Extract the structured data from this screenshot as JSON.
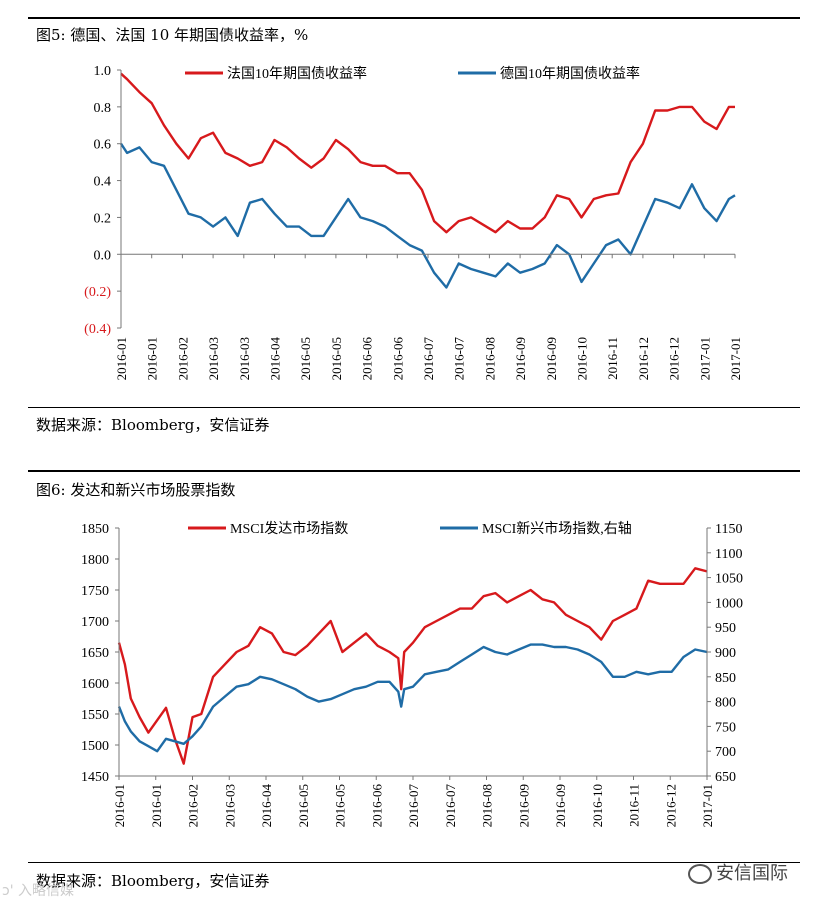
{
  "chart_data": [
    {
      "type": "line",
      "figure_label": "图5:",
      "title": "德国、法国 10 年期国债收益率，%",
      "ylim": [
        -0.4,
        1.0
      ],
      "yticks": [
        -0.4,
        -0.2,
        0.0,
        0.2,
        0.4,
        0.6,
        0.8,
        1.0
      ],
      "ytick_labels": [
        "(0.4)",
        "(0.2)",
        "0.0",
        "0.2",
        "0.4",
        "0.6",
        "0.8",
        "1.0"
      ],
      "xtick_labels": [
        "2016-01",
        "2016-01",
        "2016-02",
        "2016-03",
        "2016-03",
        "2016-04",
        "2016-05",
        "2016-05",
        "2016-06",
        "2016-06",
        "2016-07",
        "2016-07",
        "2016-08",
        "2016-09",
        "2016-09",
        "2016-10",
        "2016-11",
        "2016-12",
        "2016-12",
        "2017-01",
        "2017-01"
      ],
      "legend": "top",
      "series": [
        {
          "name": "法国10年期国债收益率",
          "color": "#d7191c",
          "x": [
            0,
            0.01,
            0.03,
            0.05,
            0.07,
            0.09,
            0.11,
            0.13,
            0.15,
            0.17,
            0.19,
            0.21,
            0.23,
            0.25,
            0.27,
            0.29,
            0.31,
            0.33,
            0.35,
            0.37,
            0.39,
            0.41,
            0.43,
            0.45,
            0.47,
            0.49,
            0.51,
            0.53,
            0.55,
            0.57,
            0.59,
            0.61,
            0.63,
            0.65,
            0.67,
            0.69,
            0.71,
            0.73,
            0.75,
            0.77,
            0.79,
            0.81,
            0.83,
            0.85,
            0.87,
            0.89,
            0.91,
            0.93,
            0.95,
            0.97,
            0.99,
            1.0
          ],
          "values": [
            0.98,
            0.95,
            0.88,
            0.82,
            0.7,
            0.6,
            0.52,
            0.63,
            0.66,
            0.55,
            0.52,
            0.48,
            0.5,
            0.62,
            0.58,
            0.52,
            0.47,
            0.52,
            0.62,
            0.57,
            0.5,
            0.48,
            0.48,
            0.44,
            0.44,
            0.35,
            0.18,
            0.12,
            0.18,
            0.2,
            0.16,
            0.12,
            0.18,
            0.14,
            0.14,
            0.2,
            0.32,
            0.3,
            0.2,
            0.3,
            0.32,
            0.33,
            0.5,
            0.6,
            0.78,
            0.78,
            0.8,
            0.8,
            0.72,
            0.68,
            0.8,
            0.8
          ]
        },
        {
          "name": "德国10年期国债收益率",
          "color": "#1f6ca6",
          "x": [
            0,
            0.01,
            0.03,
            0.05,
            0.07,
            0.09,
            0.11,
            0.13,
            0.15,
            0.17,
            0.19,
            0.21,
            0.23,
            0.25,
            0.27,
            0.29,
            0.31,
            0.33,
            0.35,
            0.37,
            0.39,
            0.41,
            0.43,
            0.45,
            0.47,
            0.49,
            0.51,
            0.53,
            0.55,
            0.57,
            0.59,
            0.61,
            0.63,
            0.65,
            0.67,
            0.69,
            0.71,
            0.73,
            0.75,
            0.77,
            0.79,
            0.81,
            0.83,
            0.85,
            0.87,
            0.89,
            0.91,
            0.93,
            0.95,
            0.97,
            0.99,
            1.0
          ],
          "values": [
            0.6,
            0.55,
            0.58,
            0.5,
            0.48,
            0.35,
            0.22,
            0.2,
            0.15,
            0.2,
            0.1,
            0.28,
            0.3,
            0.22,
            0.15,
            0.15,
            0.1,
            0.1,
            0.2,
            0.3,
            0.2,
            0.18,
            0.15,
            0.1,
            0.05,
            0.02,
            -0.1,
            -0.18,
            -0.05,
            -0.08,
            -0.1,
            -0.12,
            -0.05,
            -0.1,
            -0.08,
            -0.05,
            0.05,
            0.0,
            -0.15,
            -0.05,
            0.05,
            0.08,
            0.0,
            0.15,
            0.3,
            0.28,
            0.25,
            0.38,
            0.25,
            0.18,
            0.3,
            0.32
          ]
        }
      ]
    },
    {
      "type": "line",
      "figure_label": "图6:",
      "title": "发达和新兴市场股票指数",
      "ylim": [
        1450,
        1850
      ],
      "yticks": [
        1450,
        1500,
        1550,
        1600,
        1650,
        1700,
        1750,
        1800,
        1850
      ],
      "y2lim": [
        650,
        1150
      ],
      "y2ticks": [
        650,
        700,
        750,
        800,
        850,
        900,
        950,
        1000,
        1050,
        1100,
        1150
      ],
      "xtick_labels": [
        "2016-01",
        "2016-01",
        "2016-02",
        "2016-03",
        "2016-04",
        "2016-05",
        "2016-05",
        "2016-06",
        "2016-07",
        "2016-07",
        "2016-08",
        "2016-09",
        "2016-09",
        "2016-10",
        "2016-11",
        "2016-12",
        "2017-01"
      ],
      "legend": "top",
      "series": [
        {
          "name": "MSCI发达市场指数",
          "axis": "left",
          "color": "#d7191c",
          "x": [
            0,
            0.01,
            0.02,
            0.035,
            0.05,
            0.065,
            0.08,
            0.095,
            0.11,
            0.125,
            0.14,
            0.16,
            0.18,
            0.2,
            0.22,
            0.24,
            0.26,
            0.28,
            0.3,
            0.32,
            0.34,
            0.36,
            0.38,
            0.4,
            0.42,
            0.44,
            0.46,
            0.475,
            0.48,
            0.485,
            0.5,
            0.52,
            0.54,
            0.56,
            0.58,
            0.6,
            0.62,
            0.64,
            0.66,
            0.68,
            0.7,
            0.72,
            0.74,
            0.76,
            0.78,
            0.8,
            0.82,
            0.84,
            0.86,
            0.88,
            0.9,
            0.92,
            0.94,
            0.96,
            0.98,
            1.0
          ],
          "values": [
            1665,
            1630,
            1575,
            1545,
            1520,
            1540,
            1560,
            1510,
            1470,
            1545,
            1550,
            1610,
            1630,
            1650,
            1660,
            1690,
            1680,
            1650,
            1645,
            1660,
            1680,
            1700,
            1650,
            1665,
            1680,
            1660,
            1650,
            1640,
            1590,
            1650,
            1665,
            1690,
            1700,
            1710,
            1720,
            1720,
            1740,
            1745,
            1730,
            1740,
            1750,
            1735,
            1730,
            1710,
            1700,
            1690,
            1670,
            1700,
            1710,
            1720,
            1765,
            1760,
            1760,
            1760,
            1785,
            1780
          ]
        },
        {
          "name": "MSCI新兴市场指数,右轴",
          "axis": "right",
          "color": "#1f6ca6",
          "x": [
            0,
            0.01,
            0.02,
            0.035,
            0.05,
            0.065,
            0.08,
            0.095,
            0.11,
            0.125,
            0.14,
            0.16,
            0.18,
            0.2,
            0.22,
            0.24,
            0.26,
            0.28,
            0.3,
            0.32,
            0.34,
            0.36,
            0.38,
            0.4,
            0.42,
            0.44,
            0.46,
            0.475,
            0.48,
            0.485,
            0.5,
            0.52,
            0.54,
            0.56,
            0.58,
            0.6,
            0.62,
            0.64,
            0.66,
            0.68,
            0.7,
            0.72,
            0.74,
            0.76,
            0.78,
            0.8,
            0.82,
            0.84,
            0.86,
            0.88,
            0.9,
            0.92,
            0.94,
            0.96,
            0.98,
            1.0
          ],
          "values": [
            790,
            760,
            740,
            720,
            710,
            700,
            725,
            720,
            715,
            730,
            750,
            790,
            810,
            830,
            835,
            850,
            845,
            835,
            825,
            810,
            800,
            805,
            815,
            825,
            830,
            840,
            840,
            820,
            790,
            825,
            830,
            855,
            860,
            865,
            880,
            895,
            910,
            900,
            895,
            905,
            915,
            915,
            910,
            910,
            905,
            895,
            880,
            850,
            850,
            860,
            855,
            860,
            860,
            890,
            905,
            900
          ]
        }
      ]
    }
  ],
  "source_text": "数据来源：Bloomberg，安信证券",
  "watermark_right": "安信国际",
  "watermark_left": "入略信媒"
}
